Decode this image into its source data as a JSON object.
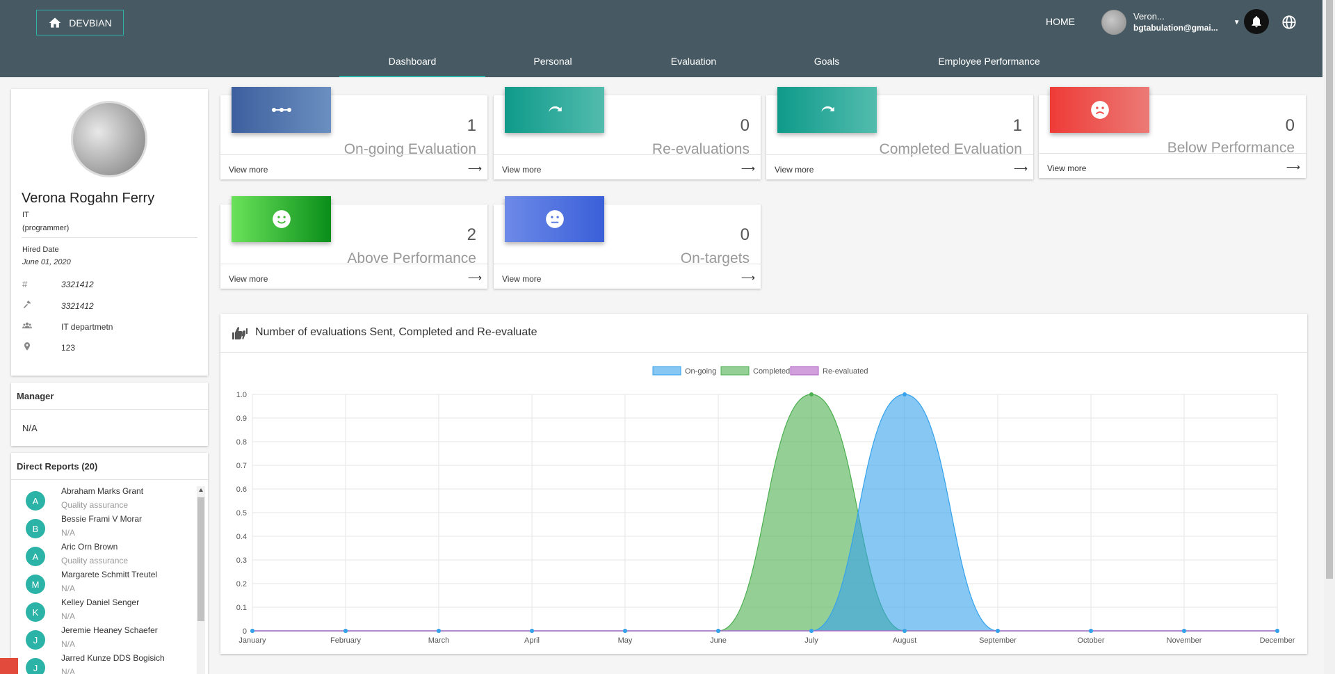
{
  "header": {
    "brand": "DEVBIAN",
    "home": "HOME",
    "user_name": "Veron...",
    "user_email": "bgtabulation@gmai..."
  },
  "tabs": [
    {
      "label": "Dashboard",
      "active": true
    },
    {
      "label": "Personal",
      "active": false
    },
    {
      "label": "Evaluation",
      "active": false
    },
    {
      "label": "Goals",
      "active": false
    },
    {
      "label": "Employee Performance",
      "active": false
    }
  ],
  "profile": {
    "name": "Verona Rogahn Ferry",
    "department": "IT",
    "position": "(programmer)",
    "hired_label": "Hired Date",
    "hired_value": "June 01, 2020",
    "details": [
      {
        "icon": "hash-icon",
        "value": "3321412"
      },
      {
        "icon": "hammer-icon",
        "value": "3321412"
      },
      {
        "icon": "users-icon",
        "value": "IT departmetn"
      },
      {
        "icon": "location-pin-icon",
        "value": "123"
      }
    ]
  },
  "manager": {
    "title": "Manager",
    "value": "N/A"
  },
  "reports": {
    "title": "Direct Reports (20)",
    "items": [
      {
        "initial": "A",
        "name": "Abraham Marks Grant",
        "role": "Quality assurance"
      },
      {
        "initial": "B",
        "name": "Bessie Frami V Morar",
        "role": "N/A"
      },
      {
        "initial": "A",
        "name": "Aric Orn Brown",
        "role": "Quality assurance"
      },
      {
        "initial": "M",
        "name": "Margarete Schmitt Treutel",
        "role": "N/A"
      },
      {
        "initial": "K",
        "name": "Kelley Daniel Senger",
        "role": "N/A"
      },
      {
        "initial": "J",
        "name": "Jeremie Heaney Schaefer",
        "role": "N/A"
      },
      {
        "initial": "J",
        "name": "Jarred Kunze DDS Bogisich",
        "role": "N/A"
      }
    ]
  },
  "stats": [
    {
      "value": "1",
      "label": "On-going Evaluation",
      "more": "View more",
      "color": "blue",
      "icon": "dots-icon"
    },
    {
      "value": "0",
      "label": "Re-evaluations",
      "more": "View more",
      "color": "teal",
      "icon": "redo-icon"
    },
    {
      "value": "1",
      "label": "Completed Evaluation",
      "more": "View more",
      "color": "teal",
      "icon": "redo-icon"
    },
    {
      "value": "0",
      "label": "Below Performance",
      "more": "View more",
      "color": "red",
      "icon": "sad-face-icon"
    },
    {
      "value": "2",
      "label": "Above Performance",
      "more": "View more",
      "color": "green",
      "icon": "smile-face-icon"
    },
    {
      "value": "0",
      "label": "On-targets",
      "more": "View more",
      "color": "indigo",
      "icon": "neutral-face-icon"
    }
  ],
  "chart_title": "Number of evaluations Sent, Completed and Re-evaluate",
  "chart_data": {
    "type": "area",
    "title": "Number of evaluations Sent, Completed and Re-evaluate",
    "categories": [
      "January",
      "February",
      "March",
      "April",
      "May",
      "June",
      "July",
      "August",
      "September",
      "October",
      "November",
      "December"
    ],
    "series": [
      {
        "name": "On-going",
        "color": "#36a2eb",
        "values": [
          0,
          0,
          0,
          0,
          0,
          0,
          0,
          1,
          0,
          0,
          0,
          0
        ]
      },
      {
        "name": "Completed",
        "color": "#4caf50",
        "values": [
          0,
          0,
          0,
          0,
          0,
          0,
          1,
          0,
          0,
          0,
          0,
          0
        ]
      },
      {
        "name": "Re-evaluated",
        "color": "#b05fc4",
        "values": [
          0,
          0,
          0,
          0,
          0,
          0,
          0,
          0,
          0,
          0,
          0,
          0
        ]
      }
    ],
    "ylim": [
      0,
      1.0
    ],
    "yticks": [
      "0",
      "0.1",
      "0.2",
      "0.3",
      "0.4",
      "0.5",
      "0.6",
      "0.7",
      "0.8",
      "0.9",
      "1.0"
    ],
    "legend": "top-center",
    "grid": true
  }
}
